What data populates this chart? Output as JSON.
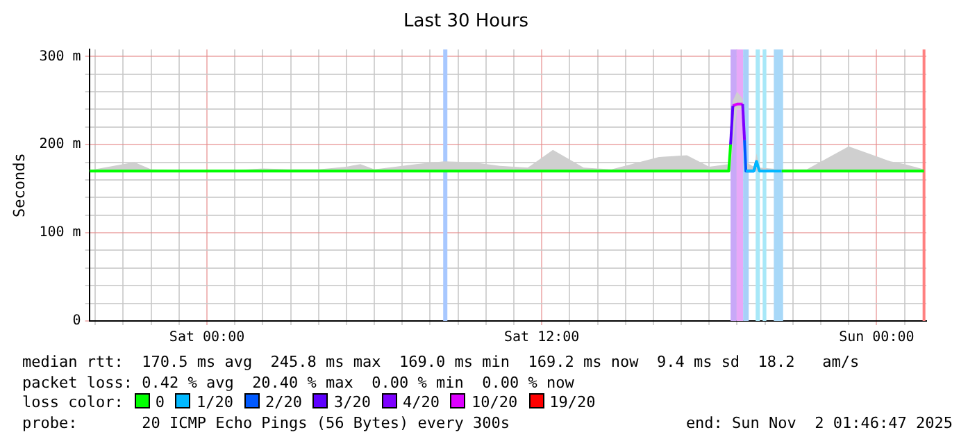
{
  "chart_data": {
    "type": "line",
    "title": "Last 30 Hours",
    "ylabel": "Seconds",
    "legend_title": "loss color:",
    "legend": "bottom",
    "grid": true,
    "marker": "none",
    "line_style": "solid",
    "xlim": [
      "2025-10-31T19:47",
      "2025-11-02T01:47"
    ],
    "xticks": [
      {
        "value": "2025-10-31T20:00",
        "label": null
      },
      {
        "value": "2025-10-31T21:00",
        "label": null
      },
      {
        "value": "2025-10-31T22:00",
        "label": null
      },
      {
        "value": "2025-10-31T23:00",
        "label": null
      },
      {
        "value": "2025-11-01T00:00",
        "label": "Sat 00:00"
      },
      {
        "value": "2025-11-01T01:00",
        "label": null
      },
      {
        "value": "2025-11-01T02:00",
        "label": null
      },
      {
        "value": "2025-11-01T03:00",
        "label": null
      },
      {
        "value": "2025-11-01T04:00",
        "label": null
      },
      {
        "value": "2025-11-01T05:00",
        "label": null
      },
      {
        "value": "2025-11-01T06:00",
        "label": null
      },
      {
        "value": "2025-11-01T07:00",
        "label": null
      },
      {
        "value": "2025-11-01T08:00",
        "label": null
      },
      {
        "value": "2025-11-01T09:00",
        "label": null
      },
      {
        "value": "2025-11-01T10:00",
        "label": null
      },
      {
        "value": "2025-11-01T11:00",
        "label": null
      },
      {
        "value": "2025-11-01T12:00",
        "label": "Sat 12:00"
      },
      {
        "value": "2025-11-01T13:00",
        "label": null
      },
      {
        "value": "2025-11-01T14:00",
        "label": null
      },
      {
        "value": "2025-11-01T15:00",
        "label": null
      },
      {
        "value": "2025-11-01T16:00",
        "label": null
      },
      {
        "value": "2025-11-01T17:00",
        "label": null
      },
      {
        "value": "2025-11-01T18:00",
        "label": null
      },
      {
        "value": "2025-11-01T19:00",
        "label": null
      },
      {
        "value": "2025-11-01T20:00",
        "label": null
      },
      {
        "value": "2025-11-01T21:00",
        "label": null
      },
      {
        "value": "2025-11-01T22:00",
        "label": null
      },
      {
        "value": "2025-11-01T23:00",
        "label": null
      },
      {
        "value": "2025-11-02T00:00",
        "label": "Sun 00:00"
      },
      {
        "value": "2025-11-02T01:00",
        "label": null
      }
    ],
    "ylim": [
      0,
      308
    ],
    "yticks": [
      0,
      {
        "value": 20,
        "label": null
      },
      {
        "value": 40,
        "label": null
      },
      {
        "value": 60,
        "label": null
      },
      {
        "value": 80,
        "label": null
      },
      {
        "value": 100,
        "label": "100 m"
      },
      {
        "value": 120,
        "label": null
      },
      {
        "value": 140,
        "label": null
      },
      {
        "value": 160,
        "label": null
      },
      {
        "value": 180,
        "label": null
      },
      {
        "value": 200,
        "label": "200 m"
      },
      {
        "value": 220,
        "label": null
      },
      {
        "value": 240,
        "label": null
      },
      {
        "value": 260,
        "label": null
      },
      {
        "value": 280,
        "label": null
      },
      {
        "value": 300,
        "label": "300 m"
      }
    ],
    "x": [
      "2025-10-31T19:48",
      "2025-10-31T21:00",
      "2025-10-31T21:24",
      "2025-10-31T22:00",
      "2025-10-31T23:00",
      "2025-11-01T00:00",
      "2025-11-01T01:00",
      "2025-11-01T02:00",
      "2025-11-01T03:00",
      "2025-11-01T04:00",
      "2025-11-01T05:00",
      "2025-11-01T05:30",
      "2025-11-01T06:00",
      "2025-11-01T07:00",
      "2025-11-01T07:30",
      "2025-11-01T08:30",
      "2025-11-01T09:30",
      "2025-11-01T10:30",
      "2025-11-01T11:30",
      "2025-11-01T12:24",
      "2025-11-01T13:30",
      "2025-11-01T14:30",
      "2025-11-01T16:12",
      "2025-11-01T17:12",
      "2025-11-01T18:00",
      "2025-11-01T18:42",
      "2025-11-01T18:46",
      "2025-11-01T18:51",
      "2025-11-01T19:00",
      "2025-11-01T19:12",
      "2025-11-01T19:16",
      "2025-11-01T19:19",
      "2025-11-01T19:36",
      "2025-11-01T19:42",
      "2025-11-01T19:48",
      "2025-11-01T20:36",
      "2025-11-01T21:30",
      "2025-11-01T23:00",
      "2025-11-02T00:30",
      "2025-11-02T01:00",
      "2025-11-02T01:42"
    ],
    "series": [
      {
        "type": "line",
        "name": "0",
        "color": "#00ff00",
        "values": [
          170,
          170,
          170,
          170,
          170,
          170,
          170,
          170,
          170,
          170,
          170,
          170,
          170,
          170,
          170,
          170,
          170,
          170,
          170,
          170,
          170,
          170,
          170,
          170,
          170,
          170,
          200,
          null,
          null,
          null,
          null,
          null,
          null,
          null,
          null,
          170,
          170,
          170,
          170,
          170,
          170
        ],
        "lower": [
          170,
          170,
          170,
          170,
          170,
          170,
          170,
          170,
          170,
          170,
          170,
          170,
          170,
          170,
          170,
          170,
          170,
          170,
          170,
          170,
          170,
          170,
          170,
          170,
          170,
          170,
          170,
          200,
          240,
          240,
          200,
          170,
          170,
          170,
          170,
          170,
          170,
          170,
          170,
          170,
          170
        ],
        "upper": [
          171,
          178,
          180,
          172,
          171,
          170,
          171,
          173,
          172,
          172,
          175,
          178,
          172,
          176,
          178,
          181,
          180,
          176,
          174,
          194,
          174,
          172,
          186,
          188,
          175,
          178,
          215,
          250,
          260,
          252,
          210,
          180,
          175,
          190,
          174,
          172,
          172,
          198,
          181,
          178,
          172
        ]
      },
      {
        "type": "line",
        "name": "1/20",
        "color": "#00b8ff",
        "values": [
          null,
          null,
          null,
          null,
          null,
          null,
          null,
          null,
          null,
          null,
          null,
          null,
          null,
          null,
          null,
          null,
          null,
          null,
          null,
          null,
          null,
          null,
          null,
          null,
          null,
          null,
          null,
          null,
          null,
          null,
          null,
          170,
          170,
          181,
          170,
          170,
          null,
          null,
          null,
          null,
          null
        ]
      },
      {
        "type": "line",
        "name": "2/20",
        "color": "#0059ff",
        "values": [
          null,
          null,
          null,
          null,
          null,
          null,
          null,
          null,
          null,
          null,
          null,
          null,
          null,
          null,
          null,
          null,
          null,
          null,
          null,
          null,
          null,
          null,
          null,
          null,
          null,
          null,
          null,
          null,
          null,
          null,
          205,
          170,
          170,
          181,
          null,
          null,
          null,
          null,
          null,
          null,
          null
        ]
      },
      {
        "type": "line",
        "name": "3/20",
        "color": "#5e00ff",
        "values": [
          null,
          null,
          null,
          null,
          null,
          null,
          null,
          null,
          null,
          null,
          null,
          null,
          null,
          null,
          null,
          null,
          null,
          null,
          null,
          null,
          null,
          null,
          null,
          null,
          null,
          null,
          200,
          244,
          null,
          null,
          null,
          null,
          null,
          null,
          null,
          null,
          null,
          null,
          null,
          null,
          null
        ]
      },
      {
        "type": "line",
        "name": "4/20",
        "color": "#7e00ff",
        "values": [
          null,
          null,
          null,
          null,
          null,
          null,
          null,
          null,
          null,
          null,
          null,
          null,
          null,
          null,
          null,
          null,
          null,
          null,
          null,
          null,
          null,
          null,
          null,
          null,
          null,
          null,
          null,
          null,
          null,
          246,
          205,
          null,
          null,
          null,
          null,
          null,
          null,
          null,
          null,
          null,
          null
        ]
      },
      {
        "type": "line",
        "name": "10/20",
        "color": "#dd00ff",
        "values": [
          null,
          null,
          null,
          null,
          null,
          null,
          null,
          null,
          null,
          null,
          null,
          null,
          null,
          null,
          null,
          null,
          null,
          null,
          null,
          null,
          null,
          null,
          null,
          null,
          null,
          null,
          null,
          244,
          246,
          246,
          null,
          null,
          null,
          null,
          null,
          null,
          null,
          null,
          null,
          null,
          null
        ]
      },
      {
        "type": "line",
        "name": "19/20",
        "color": "#ff0000",
        "values": [
          null,
          null,
          null,
          null,
          null,
          null,
          null,
          null,
          null,
          null,
          null,
          null,
          null,
          null,
          null,
          null,
          null,
          null,
          null,
          null,
          null,
          null,
          null,
          null,
          null,
          null,
          null,
          null,
          null,
          null,
          null,
          null,
          null,
          null,
          null,
          null,
          null,
          null,
          null,
          null,
          null
        ]
      }
    ],
    "bands": [
      {
        "axis": "x",
        "from": "2025-11-01T08:28",
        "to": "2025-11-01T08:37",
        "color": "#a8c8ff"
      },
      {
        "axis": "x",
        "from": "2025-11-01T18:46",
        "to": "2025-11-01T18:59",
        "color": "#c8a8f8"
      },
      {
        "axis": "x",
        "from": "2025-11-01T18:59",
        "to": "2025-11-01T19:13",
        "color": "#e8a8f8"
      },
      {
        "axis": "x",
        "from": "2025-11-01T19:13",
        "to": "2025-11-01T19:25",
        "color": "#a8d0f8"
      },
      {
        "axis": "x",
        "from": "2025-11-01T19:40",
        "to": "2025-11-01T19:49",
        "color": "#a8e8f8"
      },
      {
        "axis": "x",
        "from": "2025-11-01T19:55",
        "to": "2025-11-01T20:03",
        "color": "#a8e8f8"
      },
      {
        "axis": "x",
        "from": "2025-11-01T20:19",
        "to": "2025-11-01T20:39",
        "color": "#a8d8f8"
      }
    ],
    "ref_lines": [
      {
        "axis": "x",
        "value": "2025-11-02T01:42",
        "color": "#ff8080"
      }
    ],
    "annotations": [
      "median rtt:  170.5 ms avg  245.8 ms max  169.0 ms min  169.2 ms now  9.4 ms sd  18.2   am/s",
      "packet loss: 0.42 % avg  20.40 % max  0.00 % min  0.00 % now",
      "probe:       20 ICMP Echo Pings (56 Bytes) every 300s",
      "end: Sun Nov  2 01:46:47 2025"
    ]
  }
}
